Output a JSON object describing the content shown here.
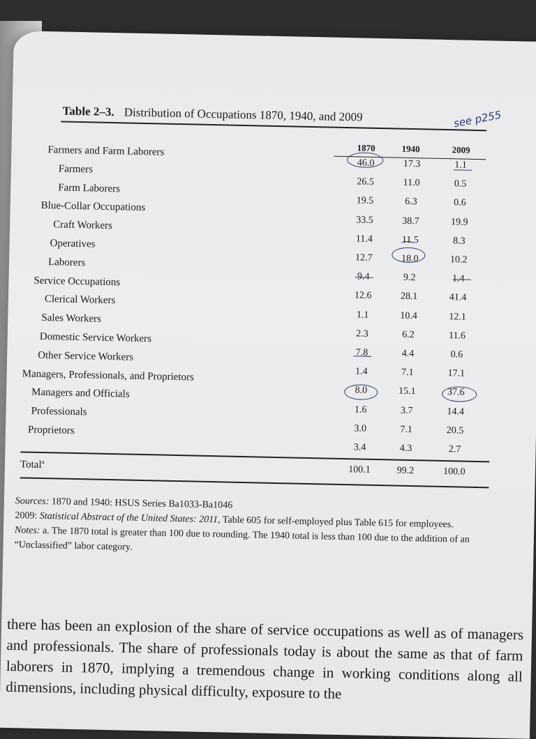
{
  "annotation": "see p255",
  "table": {
    "number": "Table 2–3.",
    "title": "Distribution of Occupations 1870, 1940, and 2009",
    "columns": [
      "1870",
      "1940",
      "2009"
    ],
    "rows": [
      {
        "label": "Farmers and Farm Laborers",
        "v": [
          "46.0",
          "17.3",
          "1.1"
        ]
      },
      {
        "label": "Farmers",
        "v": [
          "26.5",
          "11.0",
          "0.5"
        ]
      },
      {
        "label": "Farm Laborers",
        "v": [
          "19.5",
          "6.3",
          "0.6"
        ]
      },
      {
        "label": "Blue-Collar Occupations",
        "v": [
          "33.5",
          "38.7",
          "19.9"
        ]
      },
      {
        "label": "Craft Workers",
        "v": [
          "11.4",
          "11.5",
          "8.3"
        ]
      },
      {
        "label": "Operatives",
        "v": [
          "12.7",
          "18.0",
          "10.2"
        ]
      },
      {
        "label": "Laborers",
        "v": [
          "9.4",
          "9.2",
          "1.4"
        ]
      },
      {
        "label": "Service Occupations",
        "v": [
          "12.6",
          "28.1",
          "41.4"
        ]
      },
      {
        "label": "Clerical Workers",
        "v": [
          "1.1",
          "10.4",
          "12.1"
        ]
      },
      {
        "label": "Sales Workers",
        "v": [
          "2.3",
          "6.2",
          "11.6"
        ]
      },
      {
        "label": "Domestic Service Workers",
        "v": [
          "7.8",
          "4.4",
          "0.6"
        ]
      },
      {
        "label": "Other Service Workers",
        "v": [
          "1.4",
          "7.1",
          "17.1"
        ]
      },
      {
        "label": "Managers, Professionals, and Proprietors",
        "v": [
          "8.0",
          "15.1",
          "37.6"
        ]
      },
      {
        "label": "Managers and Officials",
        "v": [
          "1.6",
          "3.7",
          "14.4"
        ]
      },
      {
        "label": "Professionals",
        "v": [
          "3.0",
          "7.1",
          "20.5"
        ]
      },
      {
        "label": "Proprietors",
        "v": [
          "3.4",
          "4.3",
          "2.7"
        ]
      }
    ],
    "total": {
      "label": "Total",
      "sup": "a",
      "v": [
        "100.1",
        "99.2",
        "100.0"
      ]
    }
  },
  "notes": {
    "sources_label": "Sources:",
    "sources_1": "1870 and 1940: HSUS Series Ba1033-Ba1046",
    "sources_2_prefix": "2009:",
    "sources_2_title": "Statistical Abstract of the United States: 2011,",
    "sources_2_rest": "Table 605 for self-employed plus Table 615 for employees.",
    "notes_label": "Notes:",
    "notes_text": "a. The 1870 total is greater than 100 due to rounding. The 1940 total is less than 100 due to the addition of an “Unclassified” labor category."
  },
  "body": "there has been an explosion of the share of service occupations as well as of managers and professionals. The share of professionals today is about the same as that of farm laborers in 1870, implying a tremendous change in working conditions along all dimensions, including physical difficulty, exposure to the"
}
